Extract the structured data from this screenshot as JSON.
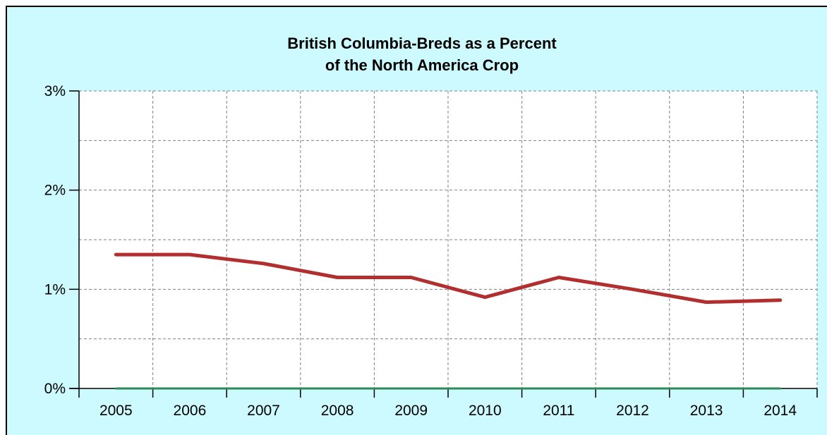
{
  "chart_data": {
    "type": "line",
    "title": "British Columbia-Breds as a Percent",
    "subtitle": "of the North America Crop",
    "xlabel": "",
    "ylabel": "",
    "categories": [
      "2005",
      "2006",
      "2007",
      "2008",
      "2009",
      "2010",
      "2011",
      "2012",
      "2013",
      "2014"
    ],
    "series": [
      {
        "values": [
          1.35,
          1.35,
          1.26,
          1.12,
          1.12,
          0.92,
          1.12,
          1.0,
          0.87,
          0.89
        ],
        "color": "#b22f2f"
      },
      {
        "values": [
          0,
          0,
          0,
          0,
          0,
          0,
          0,
          0,
          0,
          0
        ],
        "color": "#2e8b57"
      }
    ],
    "ylim": [
      0,
      3
    ],
    "yticks": [
      0,
      1,
      2,
      3
    ],
    "ytick_labels": [
      "0%",
      "1%",
      "2%",
      "3%"
    ],
    "grid": true,
    "grid_style": "dashed",
    "legend": "none",
    "colors": {
      "frame_background": "#ccfaff",
      "plot_background": "#ffffff",
      "grid": "#808080"
    }
  }
}
